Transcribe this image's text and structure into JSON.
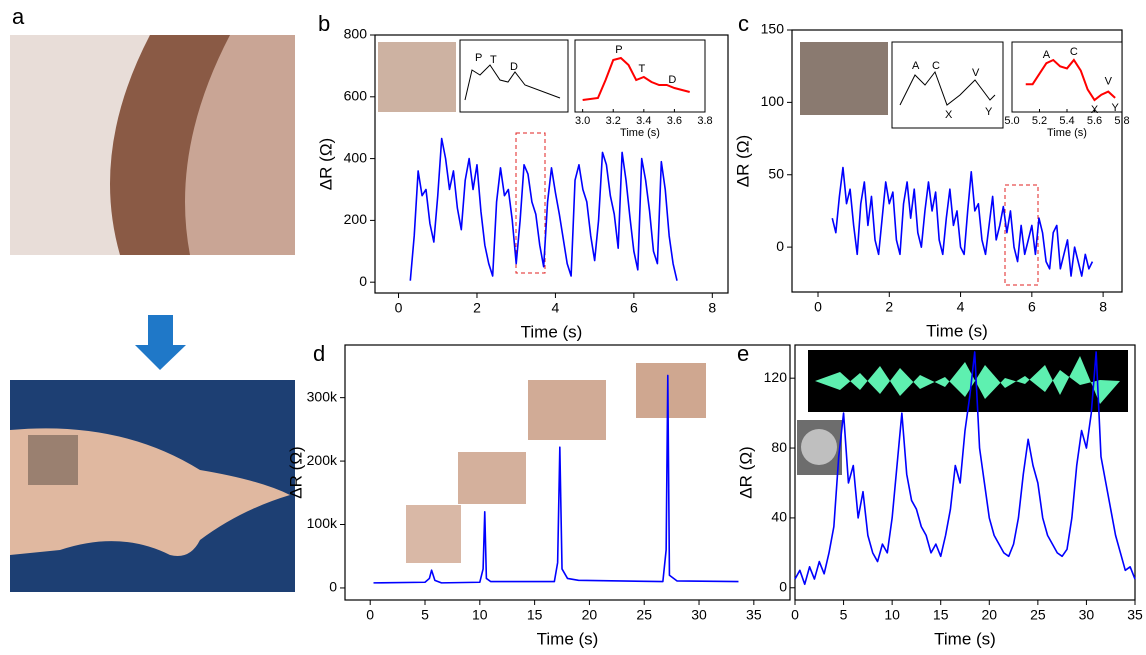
{
  "panel_a": {
    "label": "a"
  },
  "chart_data": [
    {
      "type": "line",
      "label": "b",
      "xlabel": "Time (s)",
      "ylabel": "ΔR (Ω)",
      "xlim": [
        -0.6,
        8.4
      ],
      "ylim": [
        -35,
        800
      ],
      "xticks": [
        0,
        2,
        4,
        6,
        8
      ],
      "yticks": [
        0,
        200,
        400,
        600,
        800
      ],
      "x": [
        0.3,
        0.4,
        0.5,
        0.6,
        0.7,
        0.8,
        0.9,
        1.0,
        1.1,
        1.2,
        1.3,
        1.4,
        1.5,
        1.6,
        1.7,
        1.8,
        1.9,
        2.0,
        2.1,
        2.2,
        2.3,
        2.4,
        2.5,
        2.6,
        2.7,
        2.8,
        2.9,
        3.0,
        3.1,
        3.2,
        3.3,
        3.4,
        3.5,
        3.6,
        3.7,
        3.8,
        3.9,
        4.0,
        4.1,
        4.2,
        4.3,
        4.4,
        4.5,
        4.6,
        4.7,
        4.8,
        4.9,
        5.0,
        5.1,
        5.2,
        5.3,
        5.4,
        5.5,
        5.6,
        5.7,
        5.8,
        5.9,
        6.0,
        6.1,
        6.2,
        6.3,
        6.4,
        6.5,
        6.6,
        6.7,
        6.8,
        6.9,
        7.0,
        7.1
      ],
      "series": [
        {
          "color": "#0000ff",
          "values": [
            5,
            150,
            360,
            280,
            300,
            190,
            130,
            280,
            465,
            400,
            300,
            360,
            240,
            170,
            330,
            400,
            300,
            380,
            230,
            120,
            60,
            20,
            260,
            370,
            280,
            300,
            200,
            60,
            200,
            380,
            350,
            260,
            220,
            120,
            50,
            260,
            370,
            290,
            220,
            140,
            60,
            20,
            330,
            380,
            300,
            260,
            150,
            70,
            200,
            420,
            380,
            280,
            220,
            110,
            420,
            330,
            210,
            100,
            40,
            400,
            330,
            230,
            100,
            60,
            390,
            300,
            150,
            60,
            5
          ]
        }
      ],
      "sketch_labels": [
        "P",
        "T",
        "D"
      ],
      "inset": {
        "xlim": [
          2.95,
          3.8
        ],
        "xticks": [
          {
            "value": 3,
            "label": "3.0"
          },
          {
            "value": 3.2,
            "label": "3.2"
          },
          {
            "value": 3.4,
            "label": "3.4"
          },
          {
            "value": 3.6,
            "label": "3.6"
          },
          {
            "value": 3.8,
            "label": "3.8"
          }
        ],
        "xlabel": "Time (s)",
        "color": "#ff0000",
        "labels": [
          "P",
          "T",
          "D"
        ],
        "x": [
          3.0,
          3.1,
          3.15,
          3.2,
          3.25,
          3.3,
          3.35,
          3.4,
          3.45,
          3.5,
          3.55,
          3.6,
          3.7
        ],
        "values": [
          10,
          12,
          30,
          50,
          52,
          45,
          30,
          33,
          28,
          25,
          25,
          22,
          18
        ]
      }
    },
    {
      "type": "line",
      "label": "c",
      "xlabel": "Time (s)",
      "ylabel": "ΔR (Ω)",
      "xlim": [
        -0.73,
        8.53
      ],
      "ylim": [
        -31,
        150
      ],
      "xticks": [
        0,
        2,
        4,
        6,
        8
      ],
      "yticks": [
        0,
        50,
        100,
        150
      ],
      "x": [
        0.4,
        0.5,
        0.6,
        0.7,
        0.8,
        0.9,
        1.0,
        1.1,
        1.2,
        1.3,
        1.4,
        1.5,
        1.6,
        1.7,
        1.8,
        1.9,
        2.0,
        2.1,
        2.2,
        2.3,
        2.4,
        2.5,
        2.6,
        2.7,
        2.8,
        2.9,
        3.0,
        3.1,
        3.2,
        3.3,
        3.4,
        3.5,
        3.6,
        3.7,
        3.8,
        3.9,
        4.0,
        4.1,
        4.2,
        4.3,
        4.4,
        4.5,
        4.6,
        4.7,
        4.8,
        4.9,
        5.0,
        5.1,
        5.2,
        5.3,
        5.4,
        5.5,
        5.6,
        5.7,
        5.8,
        5.9,
        6.0,
        6.1,
        6.2,
        6.3,
        6.4,
        6.5,
        6.6,
        6.7,
        6.8,
        6.9,
        7.0,
        7.1,
        7.2,
        7.3,
        7.4,
        7.5,
        7.6,
        7.7
      ],
      "series": [
        {
          "color": "#0000ff",
          "values": [
            20,
            10,
            35,
            55,
            30,
            40,
            15,
            -5,
            30,
            45,
            15,
            35,
            5,
            -5,
            20,
            45,
            30,
            38,
            5,
            -5,
            30,
            45,
            20,
            40,
            10,
            0,
            25,
            45,
            25,
            38,
            5,
            -5,
            20,
            40,
            15,
            25,
            0,
            -5,
            25,
            52,
            25,
            30,
            5,
            -5,
            15,
            35,
            5,
            15,
            28,
            10,
            25,
            0,
            -10,
            15,
            -5,
            5,
            15,
            -5,
            20,
            10,
            -10,
            -15,
            10,
            15,
            -15,
            -5,
            5,
            -20,
            0,
            -10,
            -20,
            -5,
            -15,
            -10
          ]
        }
      ],
      "sketch_labels": [
        "A",
        "C",
        "V",
        "X",
        "Y"
      ],
      "inset": {
        "xlim": [
          5.0,
          5.8
        ],
        "xticks": [
          {
            "value": 5,
            "label": "5.0"
          },
          {
            "value": 5.2,
            "label": "5.2"
          },
          {
            "value": 5.4,
            "label": "5.4"
          },
          {
            "value": 5.6,
            "label": "5.6"
          },
          {
            "value": 5.8,
            "label": "5.8"
          }
        ],
        "xlabel": "Time (s)",
        "color": "#ff0000",
        "labels": [
          "A",
          "C",
          "X",
          "V",
          "Y"
        ],
        "x": [
          5.1,
          5.15,
          5.2,
          5.25,
          5.3,
          5.35,
          5.4,
          5.45,
          5.5,
          5.55,
          5.6,
          5.65,
          5.7,
          5.75
        ],
        "values": [
          25,
          25,
          35,
          45,
          48,
          42,
          40,
          48,
          38,
          20,
          10,
          15,
          18,
          12
        ]
      }
    },
    {
      "type": "line",
      "label": "d",
      "xlabel": "Time (s)",
      "ylabel": "ΔR (Ω)",
      "xlim": [
        -2.3,
        38.3
      ],
      "ylim": [
        -19000,
        383000
      ],
      "xticks": [
        0,
        5,
        10,
        15,
        20,
        25,
        30,
        35
      ],
      "yticks": [
        0,
        {
          "value": 100000,
          "label": "100k"
        },
        {
          "value": 200000,
          "label": "200k"
        },
        {
          "value": 300000,
          "label": "300k"
        }
      ],
      "x": [
        0.3,
        5,
        5.4,
        5.6,
        5.9,
        6.5,
        10,
        10.3,
        10.45,
        10.6,
        11,
        16.8,
        17.1,
        17.3,
        17.5,
        18,
        19,
        26.7,
        27.0,
        27.15,
        27.3,
        28,
        33.6
      ],
      "series": [
        {
          "color": "#0000ff",
          "values": [
            8000,
            9000,
            15000,
            28000,
            12000,
            8000,
            9000,
            30000,
            120000,
            15000,
            10000,
            10000,
            40000,
            222000,
            30000,
            15000,
            12000,
            10000,
            60000,
            335000,
            20000,
            11000,
            10000
          ]
        }
      ]
    },
    {
      "type": "line",
      "label": "e",
      "xlabel": "Time (s)",
      "ylabel": "ΔR (Ω)",
      "xlim": [
        0,
        35
      ],
      "ylim": [
        -7,
        139
      ],
      "xticks": [
        0,
        5,
        10,
        15,
        20,
        25,
        30,
        35
      ],
      "yticks": [
        0,
        40,
        80,
        120
      ],
      "x": [
        0,
        0.5,
        1,
        1.5,
        2,
        2.5,
        3,
        3.5,
        4,
        4.5,
        5,
        5.5,
        6,
        6.5,
        7,
        7.5,
        8,
        8.5,
        9,
        9.5,
        10,
        10.5,
        11,
        11.5,
        12,
        12.5,
        13,
        13.5,
        14,
        14.5,
        15,
        15.5,
        16,
        16.5,
        17,
        17.5,
        18,
        18.5,
        19,
        19.5,
        20,
        20.5,
        21,
        21.5,
        22,
        22.5,
        23,
        23.5,
        24,
        24.5,
        25,
        25.5,
        26,
        26.5,
        27,
        27.5,
        28,
        28.5,
        29,
        29.5,
        30,
        30.5,
        31,
        31.5,
        32,
        32.5,
        33,
        33.5,
        34,
        34.5,
        35
      ],
      "series": [
        {
          "color": "#0000ff",
          "values": [
            5,
            10,
            2,
            12,
            5,
            15,
            8,
            20,
            35,
            75,
            100,
            60,
            70,
            40,
            55,
            30,
            20,
            15,
            25,
            20,
            40,
            70,
            100,
            65,
            50,
            45,
            35,
            30,
            20,
            25,
            18,
            30,
            45,
            70,
            60,
            90,
            110,
            135,
            80,
            60,
            40,
            30,
            25,
            20,
            18,
            25,
            40,
            65,
            85,
            70,
            60,
            40,
            30,
            25,
            20,
            18,
            22,
            40,
            70,
            90,
            80,
            100,
            135,
            75,
            60,
            45,
            30,
            20,
            10,
            12,
            5
          ]
        }
      ]
    }
  ]
}
